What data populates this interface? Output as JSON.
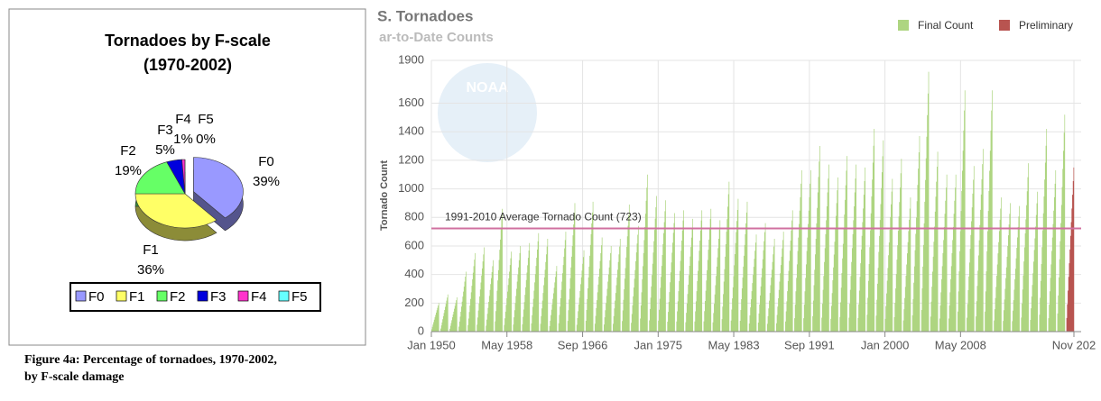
{
  "chart_data": [
    {
      "type": "pie",
      "title": "Tornadoes by F-scale",
      "subtitle": "(1970-2002)",
      "categories": [
        "F0",
        "F1",
        "F2",
        "F3",
        "F4",
        "F5"
      ],
      "values": [
        39,
        36,
        19,
        5,
        1,
        0
      ],
      "value_labels": [
        "39%",
        "36%",
        "19%",
        "5%",
        "1%",
        "0%"
      ],
      "colors": [
        "#9999ff",
        "#ffff66",
        "#66ff66",
        "#0000dd",
        "#ff33cc",
        "#66ffff"
      ],
      "legend": "bottom"
    },
    {
      "type": "bar",
      "title": "S. Tornadoes",
      "subtitle": "ar-to-Date Counts",
      "ylabel": "Tornado Count",
      "logo": "NOAA",
      "series": [
        {
          "name": "Final Count",
          "color": "#aed581",
          "x": [
            1950,
            1951,
            1952,
            1953,
            1954,
            1955,
            1956,
            1957,
            1958,
            1959,
            1960,
            1961,
            1962,
            1963,
            1964,
            1965,
            1966,
            1967,
            1968,
            1969,
            1970,
            1971,
            1972,
            1973,
            1974,
            1975,
            1976,
            1977,
            1978,
            1979,
            1980,
            1981,
            1982,
            1983,
            1984,
            1985,
            1986,
            1987,
            1988,
            1989,
            1990,
            1991,
            1992,
            1993,
            1994,
            1995,
            1996,
            1997,
            1998,
            1999,
            2000,
            2001,
            2002,
            2003,
            2004,
            2005,
            2006,
            2007,
            2008,
            2009,
            2010,
            2011,
            2012,
            2013,
            2014,
            2015,
            2016,
            2017,
            2018,
            2019
          ],
          "values": [
            200,
            260,
            240,
            420,
            550,
            590,
            500,
            860,
            560,
            600,
            620,
            690,
            650,
            460,
            700,
            900,
            570,
            910,
            660,
            600,
            650,
            890,
            740,
            1100,
            950,
            920,
            830,
            850,
            790,
            850,
            860,
            780,
            1050,
            930,
            910,
            680,
            760,
            650,
            700,
            850,
            1130,
            1130,
            1300,
            1170,
            1080,
            1230,
            1170,
            1150,
            1420,
            1340,
            1070,
            1210,
            940,
            1370,
            1820,
            1260,
            1100,
            1100,
            1690,
            1160,
            1280,
            1690,
            940,
            900,
            880,
            1180,
            980,
            1420,
            1130,
            1520
          ]
        },
        {
          "name": "Preliminary",
          "color": "#b85450",
          "x": [
            2020
          ],
          "values": [
            1150
          ]
        }
      ],
      "hline": {
        "value": 723,
        "label": "1991-2010 Average Tornado Count (723)",
        "color": "#d070a0"
      },
      "xlim": [
        1950,
        2020.83
      ],
      "xticks": [
        {
          "value": 1950,
          "label": "Jan 1950"
        },
        {
          "value": 1958.33,
          "label": "May 1958"
        },
        {
          "value": 1966.67,
          "label": "Sep 1966"
        },
        {
          "value": 1975,
          "label": "Jan 1975"
        },
        {
          "value": 1983.33,
          "label": "May 1983"
        },
        {
          "value": 1991.67,
          "label": "Sep 1991"
        },
        {
          "value": 2000,
          "label": "Jan 2000"
        },
        {
          "value": 2008.33,
          "label": "May 2008"
        },
        {
          "value": 2020.83,
          "label": "Nov 202"
        }
      ],
      "ylim": [
        0,
        1900
      ],
      "yticks": [
        0,
        200,
        400,
        600,
        800,
        1000,
        1200,
        1400,
        1600,
        1900
      ],
      "grid": true,
      "legend": "top-right"
    }
  ],
  "caption": [
    "Figure 4a: Percentage of tornadoes, 1970-2002,",
    "by F-scale damage"
  ]
}
